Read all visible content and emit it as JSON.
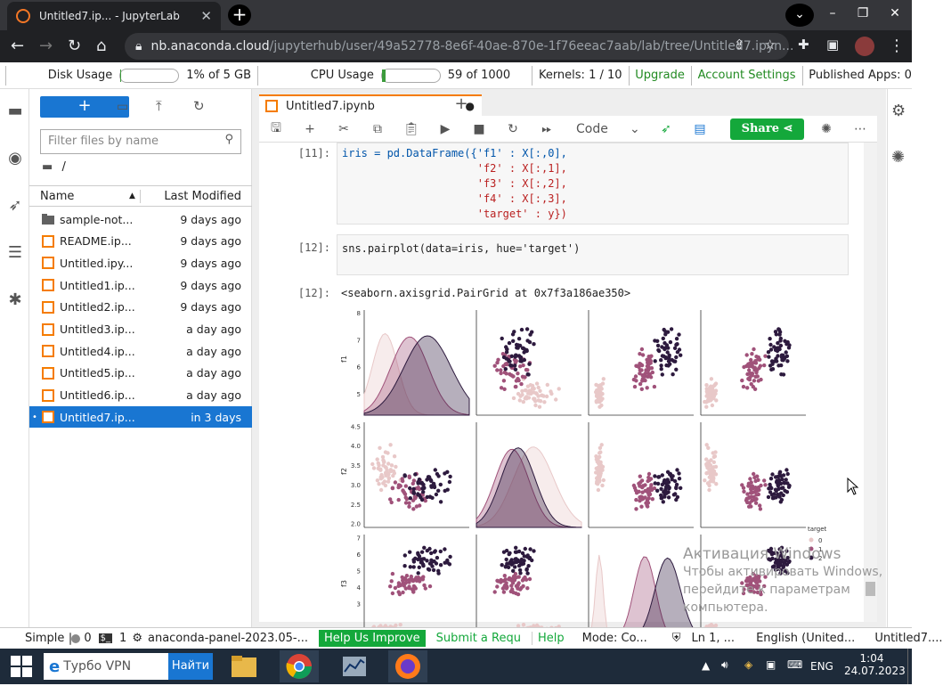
{
  "browser": {
    "tab_title": "Untitled7.ip... - JupyterLab",
    "url_host": "nb.anaconda.cloud",
    "url_path": "/jupyterhub/user/49a52778-8e6f-40ae-870e-1f76eeac7aab/lab/tree/Untitled7.ipyn..."
  },
  "status": {
    "disk_label": "Disk Usage",
    "disk_value": "1% of 5 GB",
    "disk_fraction": 0.01,
    "cpu_label": "CPU Usage",
    "cpu_value": "59 of 1000",
    "cpu_fraction": 0.059,
    "kernels": "Kernels: 1 / 10",
    "upgrade": "Upgrade",
    "account": "Account Settings",
    "published": "Published Apps: 0"
  },
  "filebrowser": {
    "filter_placeholder": "Filter files by name",
    "path": "/",
    "col_name": "Name",
    "col_modified": "Last Modified",
    "files": [
      {
        "name": "sample-not...",
        "modified": "9 days ago",
        "type": "folder"
      },
      {
        "name": "README.ip...",
        "modified": "9 days ago",
        "type": "notebook"
      },
      {
        "name": "Untitled.ipy...",
        "modified": "9 days ago",
        "type": "notebook"
      },
      {
        "name": "Untitled1.ip...",
        "modified": "9 days ago",
        "type": "notebook"
      },
      {
        "name": "Untitled2.ip...",
        "modified": "9 days ago",
        "type": "notebook"
      },
      {
        "name": "Untitled3.ip...",
        "modified": "a day ago",
        "type": "notebook"
      },
      {
        "name": "Untitled4.ip...",
        "modified": "a day ago",
        "type": "notebook"
      },
      {
        "name": "Untitled5.ip...",
        "modified": "a day ago",
        "type": "notebook"
      },
      {
        "name": "Untitled6.ip...",
        "modified": "a day ago",
        "type": "notebook"
      },
      {
        "name": "Untitled7.ip...",
        "modified": "in 3 days",
        "type": "notebook",
        "selected": true
      }
    ]
  },
  "notebook": {
    "tab_name": "Untitled7.ipynb",
    "cell_type": "Code",
    "share_label": "Share",
    "prompt_11": "[11]:",
    "prompt_12": "[12]:",
    "prompt_12_out": "[12]:",
    "cell11": [
      "iris = pd.DataFrame({'f1' : X[:,0],",
      "                     'f2' : X[:,1],",
      "                     'f3' : X[:,2],",
      "                     'f4' : X[:,3],",
      "                     'target' : y})"
    ],
    "cell12": "sns.pairplot(data=iris, hue='target')",
    "output12": "<seaborn.axisgrid.PairGrid at 0x7f3a186ae350>"
  },
  "chart_data": {
    "type": "scatter",
    "title": "",
    "legend_title": "target",
    "legend_entries": [
      "0",
      "1",
      "2"
    ],
    "series_colors": [
      "#e8c8c8",
      "#a0527a",
      "#2d1a3e"
    ],
    "ylabels": [
      "f1",
      "f2",
      "f3"
    ],
    "f1_ticks": [
      5,
      6,
      7,
      8
    ],
    "f2_ticks": [
      2.0,
      2.5,
      3.0,
      3.5,
      4.0,
      4.5
    ],
    "f3_ticks": [
      3,
      4,
      5,
      6,
      7
    ]
  },
  "watermark": {
    "line1": "Активация Windows",
    "line2": "Чтобы активировать Windows,",
    "line3": "перейдите к параметрам",
    "line4": "компьютера."
  },
  "statusbar": {
    "mode_simple": "Simple",
    "count0": "0",
    "count1": "1",
    "env": "anaconda-panel-2023.05-...",
    "help_improve": "Help Us Improve",
    "submit": "Submit a Requ",
    "help": "Help",
    "mode": "Mode: Co...",
    "ln": "Ln 1, ...",
    "lang": "English (United...",
    "file": "Untitled7...."
  },
  "taskbar": {
    "search_text": "Турбо VPN",
    "find_label": "Найти",
    "lang": "ENG",
    "time": "1:04",
    "date": "24.07.2023"
  }
}
